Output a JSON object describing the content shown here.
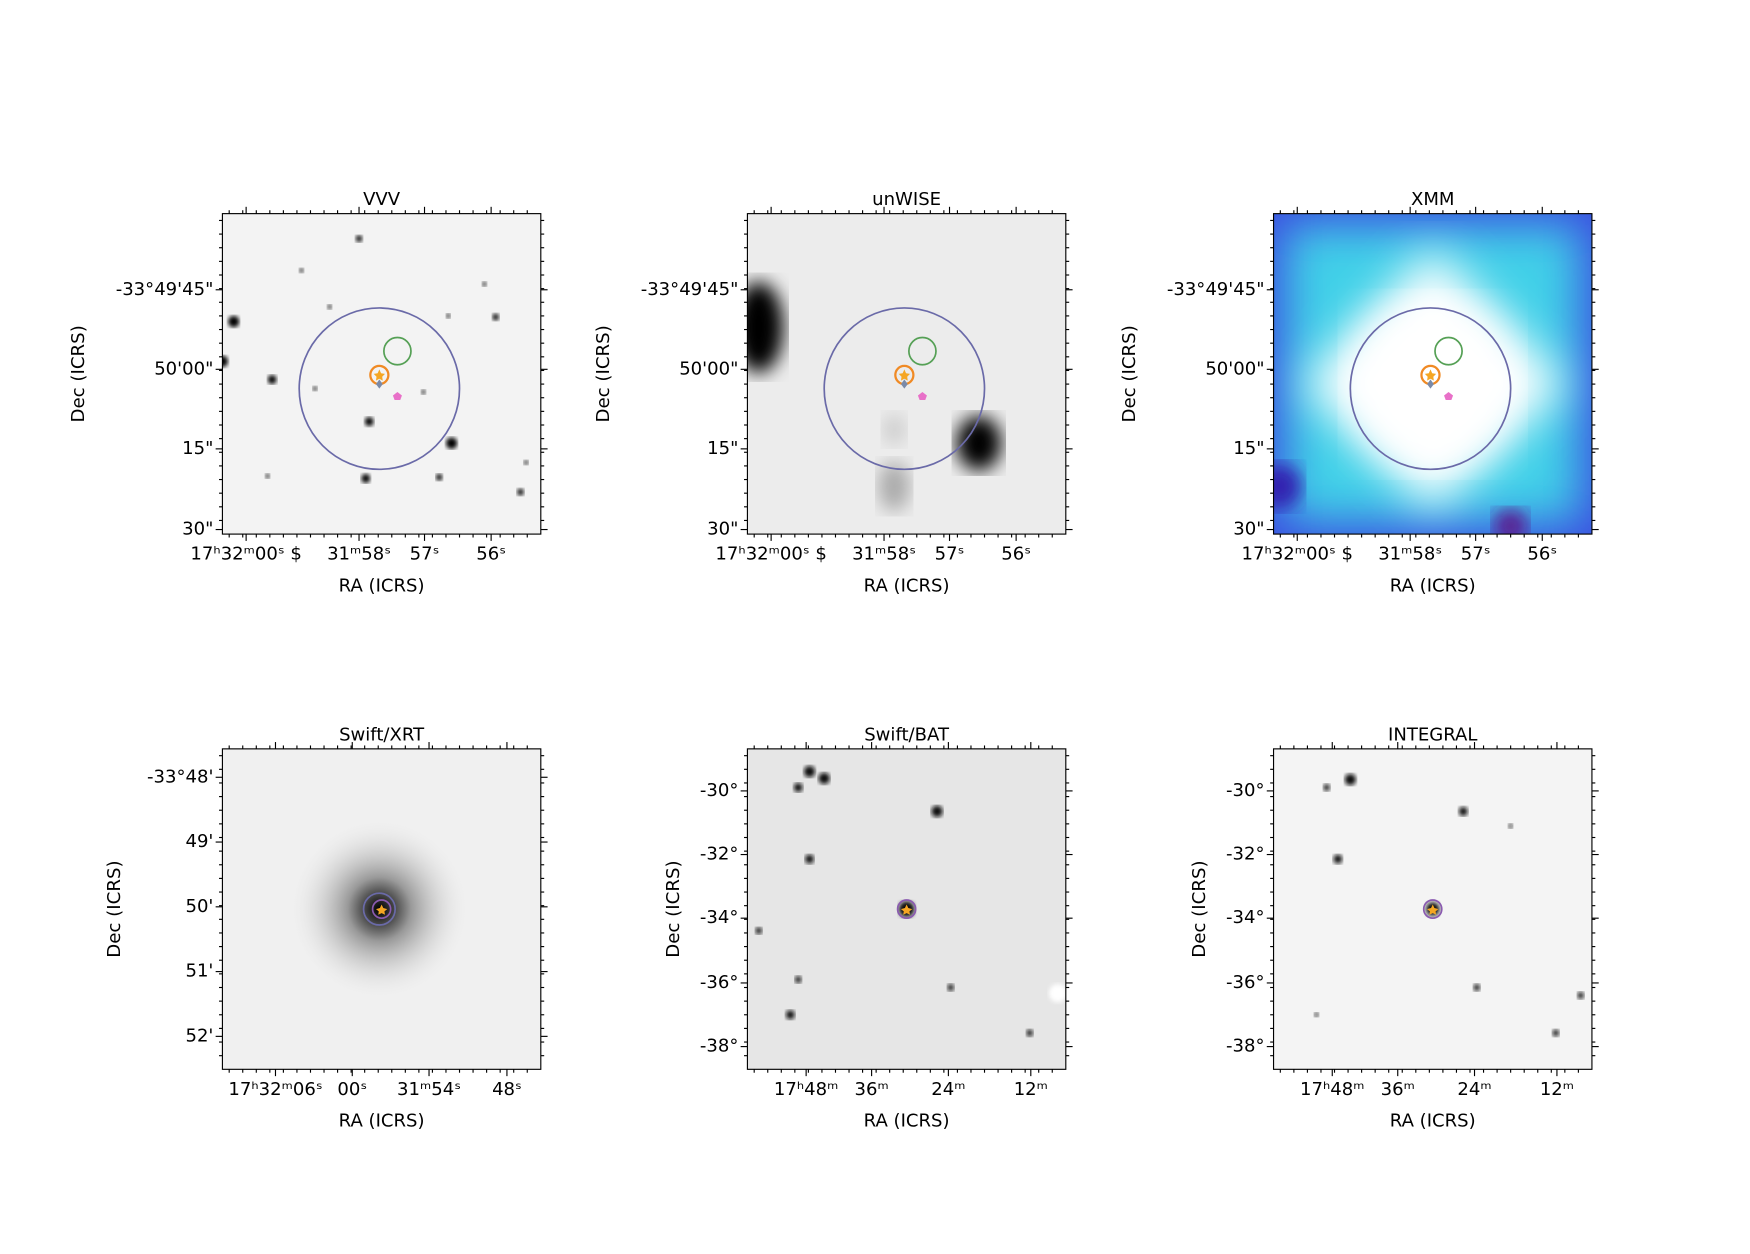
{
  "panels": [
    {
      "title": "VVV",
      "xlabel": "RA (ICRS)",
      "ylabel": "Dec (ICRS)",
      "xtick_labels": [
        "17ʰ32ᵐ00ˢ $",
        "31ᵐ58ˢ",
        "57ˢ",
        "56ˢ"
      ],
      "ytick_labels": [
        "-33°49'45\"",
        "50'00\"",
        "15\"",
        "30\""
      ]
    },
    {
      "title": "unWISE",
      "xlabel": "RA (ICRS)",
      "ylabel": "Dec (ICRS)",
      "xtick_labels": [
        "17ʰ32ᵐ00ˢ $",
        "31ᵐ58ˢ",
        "57ˢ",
        "56ˢ"
      ],
      "ytick_labels": [
        "-33°49'45\"",
        "50'00\"",
        "15\"",
        "30\""
      ]
    },
    {
      "title": "XMM",
      "xlabel": "RA (ICRS)",
      "ylabel": "Dec (ICRS)",
      "xtick_labels": [
        "17ʰ32ᵐ00ˢ $",
        "31ᵐ58ˢ",
        "57ˢ",
        "56ˢ"
      ],
      "ytick_labels": [
        "-33°49'45\"",
        "50'00\"",
        "15\"",
        "30\""
      ]
    },
    {
      "title": "Swift/XRT",
      "xlabel": "RA (ICRS)",
      "ylabel": "Dec (ICRS)",
      "xtick_labels": [
        "17ʰ32ᵐ06ˢ",
        "00ˢ",
        "31ᵐ54ˢ",
        "48ˢ"
      ],
      "ytick_labels": [
        "-33°48'",
        "49'",
        "50'",
        "51'",
        "52'"
      ]
    },
    {
      "title": "Swift/BAT",
      "xlabel": "RA (ICRS)",
      "ylabel": "Dec (ICRS)",
      "xtick_labels": [
        "17ʰ48ᵐ",
        "36ᵐ",
        "24ᵐ",
        "12ᵐ"
      ],
      "ytick_labels": [
        "-30°",
        "-32°",
        "-34°",
        "-36°",
        "-38°"
      ]
    },
    {
      "title": "INTEGRAL",
      "xlabel": "RA (ICRS)",
      "ylabel": "Dec (ICRS)",
      "xtick_labels": [
        "17ʰ48ᵐ",
        "36ᵐ",
        "24ᵐ",
        "12ᵐ"
      ],
      "ytick_labels": [
        "-30°",
        "-32°",
        "-34°",
        "-36°",
        "-38°"
      ]
    }
  ]
}
